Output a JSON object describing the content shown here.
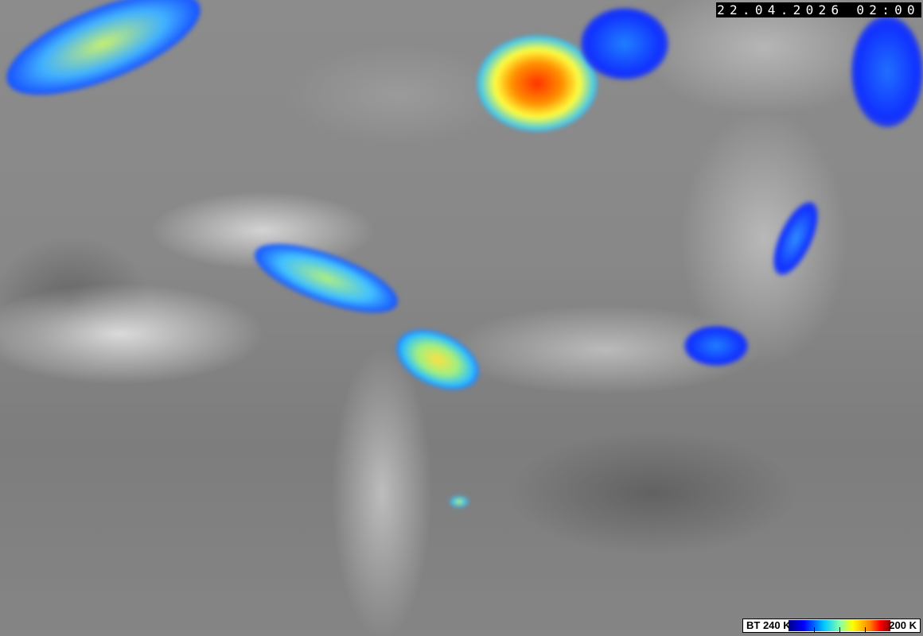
{
  "timestamp": "22.04.2026 02:00",
  "legend": {
    "low_label": "BT 240 K",
    "high_label": "200 K",
    "colors": [
      "#00008a",
      "#0000ff",
      "#00c8ff",
      "#80ffb0",
      "#ffff00",
      "#ff8000",
      "#ff0000",
      "#8a0000"
    ]
  }
}
